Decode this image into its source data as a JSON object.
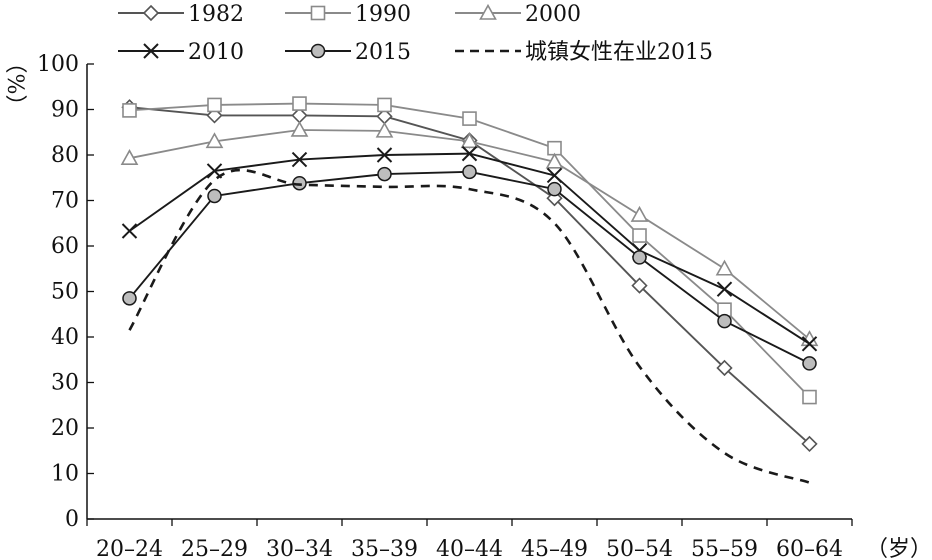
{
  "chart_data": {
    "type": "line",
    "categories": [
      "20–24",
      "25–29",
      "30–34",
      "35–39",
      "40–44",
      "45–49",
      "50–54",
      "55–59",
      "60–64"
    ],
    "y_unit": "%",
    "x_unit": "岁",
    "ylim": [
      0,
      100
    ],
    "yticks": [
      0,
      10,
      20,
      30,
      40,
      50,
      60,
      70,
      80,
      90,
      100
    ],
    "grid": false,
    "legend_position": "top",
    "series": [
      {
        "name": "1982",
        "marker": "diamond",
        "color": "#555555",
        "dashed": false,
        "values": [
          90.5,
          88.7,
          88.7,
          88.5,
          83.2,
          70.5,
          51.3,
          33.2,
          16.5
        ]
      },
      {
        "name": "1990",
        "marker": "square",
        "color": "#8a8a8a",
        "dashed": false,
        "values": [
          89.8,
          91.0,
          91.3,
          91.0,
          88.0,
          81.5,
          62.3,
          46.0,
          26.8
        ]
      },
      {
        "name": "2000",
        "marker": "triangle",
        "color": "#8a8a8a",
        "dashed": false,
        "values": [
          79.3,
          83.0,
          85.5,
          85.3,
          83.0,
          78.5,
          66.8,
          55.0,
          39.5
        ]
      },
      {
        "name": "2010",
        "marker": "x",
        "color": "#1a1a1a",
        "dashed": false,
        "values": [
          63.3,
          76.5,
          79.0,
          80.0,
          80.3,
          75.5,
          59.0,
          50.5,
          38.5
        ]
      },
      {
        "name": "2015",
        "marker": "circle",
        "color": "#1a1a1a",
        "dashed": false,
        "values": [
          48.5,
          71.0,
          73.8,
          75.8,
          76.3,
          72.5,
          57.5,
          43.5,
          34.2
        ]
      },
      {
        "name": "城镇女性在业2015",
        "marker": "none",
        "color": "#1a1a1a",
        "dashed": true,
        "values": [
          41.5,
          74.5,
          73.5,
          73.0,
          72.5,
          65.0,
          33.5,
          14.5,
          8.0
        ]
      }
    ]
  }
}
